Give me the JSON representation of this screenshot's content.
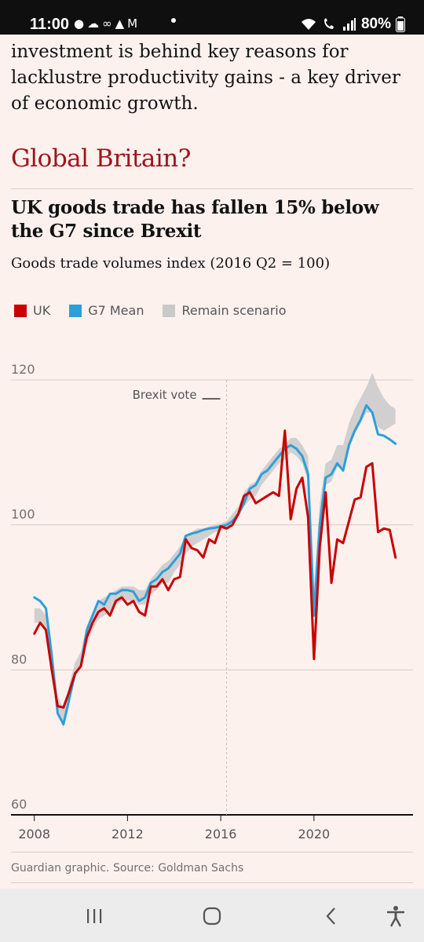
{
  "status_bar": {
    "time": "11:00",
    "battery": "80%",
    "icons": [
      "facebook-icon",
      "cloud-icon",
      "voicemail-icon",
      "drive-icon",
      "gmail-icon",
      "wifi-icon",
      "wifi-call-icon",
      "signal-icon",
      "battery-icon"
    ]
  },
  "article": {
    "paragraph": "investment is behind key reasons for lacklustre productivity gains - a key driver of economic growth.",
    "section_heading": "Global Britain?"
  },
  "chart_data": {
    "type": "line",
    "title": "UK goods trade has fallen 15% below the G7 since Brexit",
    "subtitle": "Goods trade volumes index (2016 Q2 = 100)",
    "xlabel": "",
    "ylabel": "",
    "xlim": [
      2007.0,
      2024.25
    ],
    "ylim": [
      60,
      120
    ],
    "y_ticks": [
      "120",
      "100",
      "80",
      "60"
    ],
    "x_ticks": [
      "2008",
      "2012",
      "2016",
      "2020"
    ],
    "grid": true,
    "legend_position": "top-left",
    "annotation": "Brexit vote",
    "annotation_x": 2016.25,
    "colors": {
      "UK": "#c70000",
      "G7 Mean": "#2c9fd9",
      "Remain scenario": "#c9c9c9"
    },
    "series": [
      {
        "name": "UK",
        "x": [
          2008.0,
          2008.25,
          2008.5,
          2008.75,
          2009.0,
          2009.25,
          2009.5,
          2009.75,
          2010.0,
          2010.25,
          2010.5,
          2010.75,
          2011.0,
          2011.25,
          2011.5,
          2011.75,
          2012.0,
          2012.25,
          2012.5,
          2012.75,
          2013.0,
          2013.25,
          2013.5,
          2013.75,
          2014.0,
          2014.25,
          2014.5,
          2014.75,
          2015.0,
          2015.25,
          2015.5,
          2015.75,
          2016.0,
          2016.25,
          2016.5,
          2016.75,
          2017.0,
          2017.25,
          2017.5,
          2017.75,
          2018.0,
          2018.25,
          2018.5,
          2018.75,
          2019.0,
          2019.25,
          2019.5,
          2019.75,
          2020.0,
          2020.25,
          2020.5,
          2020.75,
          2021.0,
          2021.25,
          2021.5,
          2021.75,
          2022.0,
          2022.25,
          2022.5,
          2022.75,
          2023.0,
          2023.25,
          2023.5
        ],
        "values": [
          85,
          86.5,
          85.5,
          80,
          75,
          74.8,
          77,
          79.5,
          80.5,
          84.5,
          86.5,
          88,
          88.5,
          87.5,
          89.5,
          90,
          89,
          89.5,
          88,
          87.5,
          91.5,
          91.5,
          92.5,
          91,
          92.5,
          92.8,
          98,
          96.8,
          96.5,
          95.5,
          98,
          97.5,
          99.8,
          99.5,
          100,
          101.5,
          104,
          104.5,
          103,
          103.5,
          104,
          104.5,
          104,
          113,
          100.8,
          105,
          106.5,
          101,
          81.5,
          97,
          104.5,
          92,
          98,
          97.5,
          100.5,
          103.5,
          103.8,
          108,
          108.5,
          99,
          99.5,
          99.3,
          95.5
        ]
      },
      {
        "name": "G7 Mean",
        "x": [
          2008.0,
          2008.25,
          2008.5,
          2008.75,
          2009.0,
          2009.25,
          2009.5,
          2009.75,
          2010.0,
          2010.25,
          2010.5,
          2010.75,
          2011.0,
          2011.25,
          2011.5,
          2011.75,
          2012.0,
          2012.25,
          2012.5,
          2012.75,
          2013.0,
          2013.25,
          2013.5,
          2013.75,
          2014.0,
          2014.25,
          2014.5,
          2014.75,
          2015.0,
          2015.25,
          2015.5,
          2015.75,
          2016.0,
          2016.25,
          2016.5,
          2016.75,
          2017.0,
          2017.25,
          2017.5,
          2017.75,
          2018.0,
          2018.25,
          2018.5,
          2018.75,
          2019.0,
          2019.25,
          2019.5,
          2019.75,
          2020.0,
          2020.25,
          2020.5,
          2020.75,
          2021.0,
          2021.25,
          2021.5,
          2021.75,
          2022.0,
          2022.25,
          2022.5,
          2022.75,
          2023.0,
          2023.25,
          2023.5
        ],
        "values": [
          90,
          89.5,
          88.5,
          82,
          74,
          72.5,
          76,
          79.5,
          80.5,
          85.5,
          87.5,
          89.5,
          89,
          90.5,
          90.5,
          91,
          91,
          90.8,
          89.5,
          90,
          92,
          92.5,
          93.5,
          94,
          95,
          96,
          98.5,
          98.8,
          99,
          99.3,
          99.5,
          99.6,
          99.8,
          100,
          100.5,
          101.5,
          103,
          105,
          105.5,
          107,
          107.5,
          108.5,
          109.5,
          110.5,
          111,
          110.5,
          109.5,
          107,
          87.5,
          100,
          106.5,
          107,
          108.5,
          107.5,
          111,
          113,
          114.5,
          116.5,
          115.5,
          112.5,
          112.3,
          111.8,
          111.2
        ]
      },
      {
        "name": "Remain scenario",
        "x": [
          2008.0,
          2008.25,
          2008.5,
          2008.75,
          2009.0,
          2009.25,
          2009.5,
          2009.75,
          2010.0,
          2010.25,
          2010.5,
          2010.75,
          2011.0,
          2011.25,
          2011.5,
          2011.75,
          2012.0,
          2012.25,
          2012.5,
          2012.75,
          2013.0,
          2013.25,
          2013.5,
          2013.75,
          2014.0,
          2014.25,
          2014.5,
          2014.75,
          2015.0,
          2015.25,
          2015.5,
          2015.75,
          2016.0,
          2016.25,
          2016.5,
          2016.75,
          2017.0,
          2017.25,
          2017.5,
          2017.75,
          2018.0,
          2018.25,
          2018.5,
          2018.75,
          2019.0,
          2019.25,
          2019.5,
          2019.75,
          2020.0,
          2020.25,
          2020.5,
          2020.75,
          2021.0,
          2021.25,
          2021.5,
          2021.75,
          2022.0,
          2022.25,
          2022.5,
          2022.75,
          2023.0,
          2023.25,
          2023.5
        ],
        "values_low": [
          86.5,
          86.5,
          85.5,
          80.5,
          74,
          72,
          75.5,
          79,
          80.5,
          83.5,
          85.5,
          87,
          87.5,
          88,
          89,
          89.5,
          89.5,
          89.5,
          89,
          89,
          90.5,
          91,
          92,
          92,
          93.5,
          94.5,
          96,
          97,
          97.5,
          98,
          98.5,
          99,
          99.2,
          99.5,
          100,
          101,
          102.5,
          103.5,
          104,
          105.5,
          106.5,
          107.5,
          108.5,
          109,
          110,
          109.5,
          108.5,
          106,
          87.5,
          99.5,
          105.5,
          106,
          108,
          108,
          110.5,
          112.5,
          114,
          115.5,
          115.5,
          113.5,
          113,
          113.5,
          114
        ],
        "values_high": [
          88.5,
          88.5,
          87.5,
          83,
          76.5,
          74.5,
          78,
          81,
          82.5,
          86,
          88,
          89.5,
          90,
          90.5,
          91,
          91.5,
          91.5,
          91.5,
          91,
          91,
          92.5,
          93.5,
          94.5,
          95,
          96,
          97,
          98.5,
          99,
          99.5,
          99.5,
          99.8,
          100,
          100.2,
          100.5,
          101.5,
          102.5,
          104.5,
          105.5,
          106,
          107.5,
          108.5,
          109.5,
          110.5,
          111,
          112,
          112,
          111,
          109.5,
          91.5,
          103,
          108.5,
          109,
          111,
          111,
          114,
          116,
          117.5,
          119,
          121,
          119,
          117.5,
          116.5,
          116
        ]
      }
    ]
  },
  "source": "Guardian graphic. Source: Goldman Sachs",
  "nav": {
    "icons": [
      "recent-apps-icon",
      "home-icon",
      "back-icon",
      "accessibility-icon"
    ]
  }
}
